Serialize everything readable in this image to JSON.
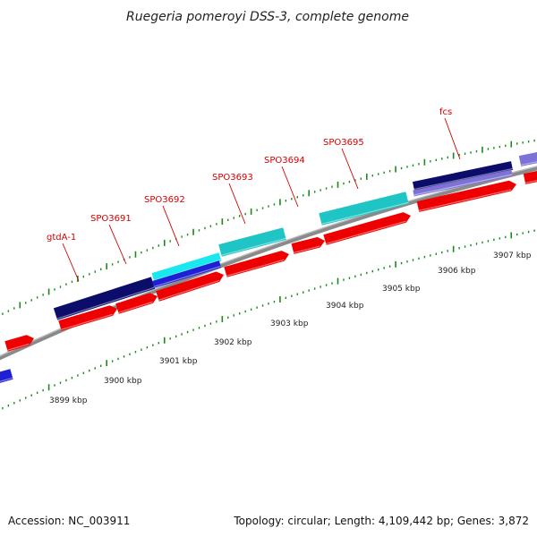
{
  "title": "Ruegeria pomeroyi DSS-3, complete genome",
  "footer": {
    "accession": "Accession: NC_003911",
    "summary": "Topology: circular; Length: 4,109,442 bp; Genes: 3,872"
  },
  "colors": {
    "forward_gene": "#ee0000",
    "reverse_gene": "#1f1fd6",
    "navy": "#0c0c6a",
    "cyan": "#1fc4c4",
    "bright_cyan": "#18e8f0",
    "lavender": "#7e72d6",
    "backbone": "#8a8a8a",
    "tick": "#1a8a1a",
    "label": "#d40000"
  },
  "gene_labels": [
    "gtdA-1",
    "SPO3691",
    "SPO3692",
    "SPO3693",
    "SPO3694",
    "SPO3695",
    "fcs"
  ],
  "scale_labels": [
    "3899 kbp",
    "3900 kbp",
    "3901 kbp",
    "3902 kbp",
    "3903 kbp",
    "3904 kbp",
    "3905 kbp",
    "3906 kbp",
    "3907 kbp"
  ]
}
